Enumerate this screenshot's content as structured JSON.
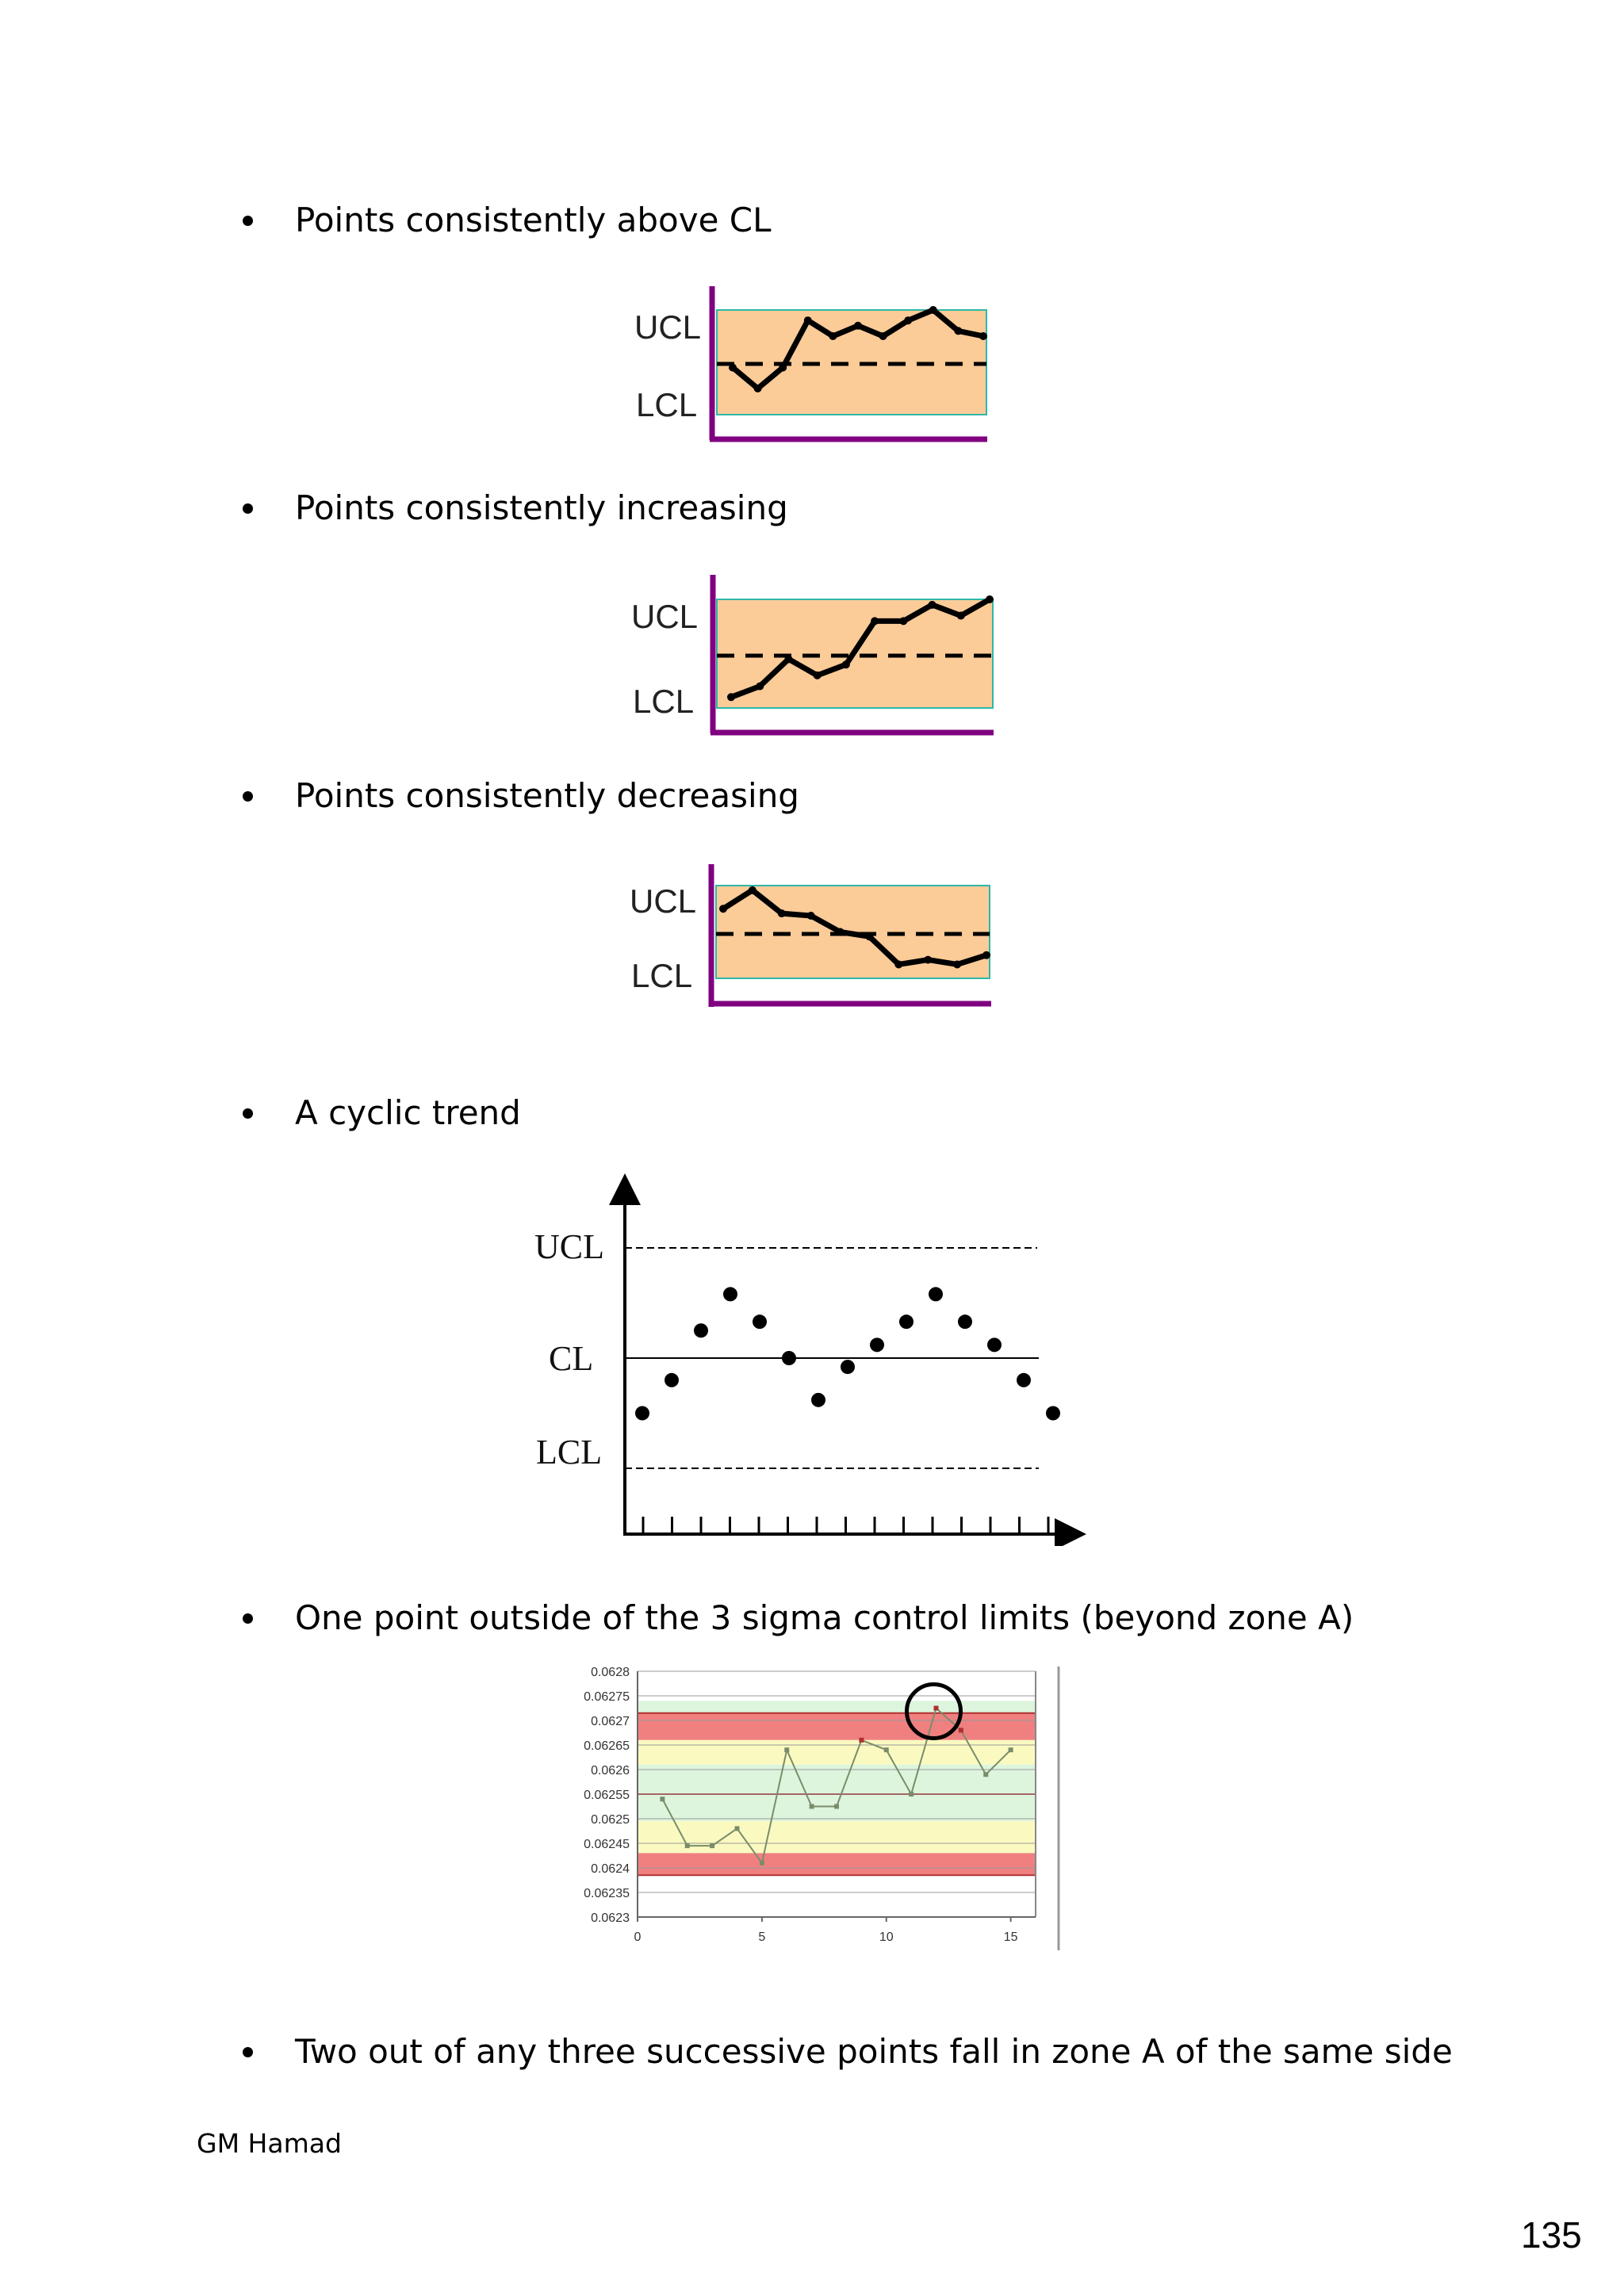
{
  "bullets": [
    "Points consistently above CL",
    "Points consistently increasing",
    "Points consistently decreasing",
    "A cyclic trend",
    "One point outside of the 3 sigma control limits (beyond zone A)",
    "Two out of any three successive points fall in zone A of the same side"
  ],
  "limit_labels": {
    "ucl": "UCL",
    "cl": "CL",
    "lcl": "LCL"
  },
  "footer": {
    "author": "GM Hamad",
    "page_number": "135"
  },
  "colors": {
    "box_fill": "#FBCB98",
    "box_border": "#2DB8A6",
    "axis_purple": "#800080",
    "zone_red": "#F08080",
    "zone_yellow": "#FAFAC0",
    "zone_green": "#DDF5DD",
    "series_line": "#7A8C6A"
  },
  "chart_data": [
    {
      "type": "line",
      "title": "Points consistently above CL",
      "y_labels": [
        "UCL",
        "LCL"
      ],
      "values": [
        -0.1,
        -0.5,
        -0.1,
        0.8,
        0.5,
        0.7,
        0.5,
        0.8,
        1.0,
        0.6,
        0.5
      ],
      "center_line": 0,
      "ylim": [
        -1,
        1
      ]
    },
    {
      "type": "line",
      "title": "Points consistently increasing",
      "y_labels": [
        "UCL",
        "LCL"
      ],
      "values": [
        -0.8,
        -0.6,
        -0.1,
        -0.4,
        -0.2,
        0.6,
        0.6,
        0.9,
        0.7,
        1.0
      ],
      "center_line": 0,
      "ylim": [
        -1,
        1
      ]
    },
    {
      "type": "line",
      "title": "Points consistently decreasing",
      "y_labels": [
        "UCL",
        "LCL"
      ],
      "values": [
        0.5,
        0.9,
        0.4,
        0.35,
        0.0,
        -0.1,
        -0.7,
        -0.6,
        -0.7,
        -0.5
      ],
      "center_line": 0,
      "ylim": [
        -1,
        1
      ]
    },
    {
      "type": "scatter",
      "title": "A cyclic trend",
      "y_labels": [
        "UCL",
        "CL",
        "LCL"
      ],
      "x": [
        1,
        2,
        3,
        4,
        5,
        6,
        7,
        8,
        9,
        10,
        11,
        12,
        13,
        14,
        15
      ],
      "values": [
        -0.5,
        -0.2,
        0.25,
        0.58,
        0.33,
        0.0,
        -0.38,
        -0.08,
        0.12,
        0.33,
        0.58,
        0.33,
        0.12,
        -0.2,
        -0.5
      ],
      "center_line": 0,
      "ucl": 1,
      "lcl": -1,
      "ylim": [
        -1.6,
        1.5
      ],
      "x_ticks": 15
    },
    {
      "type": "line",
      "title": "One point outside of the 3 sigma control limits (beyond zone A)",
      "x": [
        1,
        2,
        3,
        4,
        5,
        6,
        7,
        8,
        9,
        10,
        11,
        12,
        13,
        14,
        15
      ],
      "values": [
        0.06254,
        0.062445,
        0.062445,
        0.06248,
        0.06241,
        0.06264,
        0.062525,
        0.062525,
        0.06266,
        0.06264,
        0.06255,
        0.062725,
        0.06268,
        0.06259,
        0.06264
      ],
      "ylim": [
        0.0623,
        0.0628
      ],
      "y_ticks": [
        "0.0628",
        "0.06275",
        "0.0627",
        "0.06265",
        "0.0626",
        "0.06255",
        "0.0625",
        "0.06245",
        "0.0624",
        "0.06235",
        "0.0623"
      ],
      "x_ticks": [
        "0",
        "5",
        "10",
        "15"
      ],
      "xlim": [
        0,
        16
      ],
      "zones": [
        {
          "from": 0.062715,
          "to": 0.06274,
          "fill": "green"
        },
        {
          "from": 0.06266,
          "to": 0.062715,
          "fill": "red"
        },
        {
          "from": 0.06261,
          "to": 0.06266,
          "fill": "yellow"
        },
        {
          "from": 0.06255,
          "to": 0.06261,
          "fill": "green"
        },
        {
          "from": 0.062495,
          "to": 0.06255,
          "fill": "green"
        },
        {
          "from": 0.06243,
          "to": 0.062495,
          "fill": "yellow"
        },
        {
          "from": 0.062385,
          "to": 0.06243,
          "fill": "red"
        }
      ],
      "highlighted_point_index": 11
    }
  ]
}
